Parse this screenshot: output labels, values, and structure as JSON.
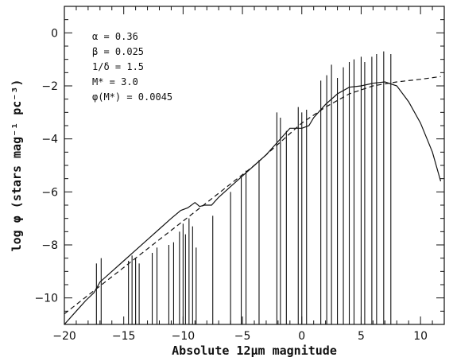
{
  "chart_data": {
    "type": "line",
    "xlabel": "Absolute 12μm magnitude",
    "ylabel": "log φ (stars mag⁻¹ pc⁻³)",
    "xlim": [
      -20,
      12
    ],
    "ylim": [
      -11,
      1
    ],
    "xticks": [
      -20,
      -15,
      -10,
      -5,
      0,
      5,
      10
    ],
    "yticks": [
      0,
      -2,
      -4,
      -6,
      -8,
      -10
    ],
    "params": [
      "α = 0.36",
      "β = 0.025",
      "1/δ = 1.5",
      "M* = 3.0",
      "φ(M*) = 0.0045"
    ],
    "series": [
      {
        "style": "solid",
        "x": [
          -20,
          -19,
          -18.2,
          -17.5,
          -17,
          -16,
          -15,
          -14,
          -13,
          -12,
          -11,
          -10.2,
          -9.6,
          -9,
          -8.6,
          -8.2,
          -7.6,
          -7,
          -6,
          -5,
          -4,
          -3,
          -2,
          -1,
          0,
          0.6,
          1,
          2,
          3,
          4,
          5,
          6,
          7,
          8,
          9,
          10,
          11,
          11.7
        ],
        "y": [
          -11,
          -10.5,
          -10.1,
          -9.8,
          -9.4,
          -9,
          -8.6,
          -8.2,
          -7.8,
          -7.4,
          -7,
          -6.7,
          -6.6,
          -6.4,
          -6.55,
          -6.5,
          -6.5,
          -6.2,
          -5.8,
          -5.4,
          -5,
          -4.6,
          -4.1,
          -3.6,
          -3.6,
          -3.5,
          -3.2,
          -2.7,
          -2.3,
          -2.05,
          -2,
          -1.9,
          -1.85,
          -2,
          -2.6,
          -3.4,
          -4.5,
          -5.6
        ]
      },
      {
        "style": "dashed",
        "x": [
          -20,
          -18,
          -16,
          -14,
          -12,
          -10,
          -8,
          -6,
          -4,
          -2,
          0,
          2,
          4,
          6,
          8,
          10,
          11.7
        ],
        "y": [
          -10.6,
          -9.9,
          -9.2,
          -8.5,
          -7.8,
          -7.1,
          -6.4,
          -5.7,
          -5.0,
          -4.2,
          -3.4,
          -2.8,
          -2.3,
          -2.0,
          -1.85,
          -1.75,
          -1.65
        ]
      }
    ],
    "error_bars": [
      {
        "x": -17.3,
        "lo": -11,
        "hi": -8.7
      },
      {
        "x": -16.9,
        "lo": -11,
        "hi": -8.5
      },
      {
        "x": -14.6,
        "lo": -11,
        "hi": -8.6
      },
      {
        "x": -14.3,
        "lo": -11,
        "hi": -8.4
      },
      {
        "x": -14.0,
        "lo": -11,
        "hi": -8.5
      },
      {
        "x": -13.7,
        "lo": -11,
        "hi": -8.7
      },
      {
        "x": -12.6,
        "lo": -11,
        "hi": -8.3
      },
      {
        "x": -12.2,
        "lo": -11,
        "hi": -8.1
      },
      {
        "x": -11.2,
        "lo": -11,
        "hi": -8.0
      },
      {
        "x": -10.8,
        "lo": -11,
        "hi": -7.9
      },
      {
        "x": -10.3,
        "lo": -11,
        "hi": -7.5
      },
      {
        "x": -10.0,
        "lo": -11,
        "hi": -7.2
      },
      {
        "x": -9.8,
        "lo": -11,
        "hi": -7.6
      },
      {
        "x": -9.5,
        "lo": -11,
        "hi": -7.0
      },
      {
        "x": -9.2,
        "lo": -11,
        "hi": -7.3
      },
      {
        "x": -8.9,
        "lo": -11,
        "hi": -8.1
      },
      {
        "x": -7.5,
        "lo": -11,
        "hi": -6.9
      },
      {
        "x": -6.0,
        "lo": -11,
        "hi": -6.0
      },
      {
        "x": -5.1,
        "lo": -11,
        "hi": -5.4
      },
      {
        "x": -4.7,
        "lo": -11,
        "hi": -5.2
      },
      {
        "x": -3.6,
        "lo": -11,
        "hi": -4.8
      },
      {
        "x": -2.1,
        "lo": -11,
        "hi": -3.0
      },
      {
        "x": -1.8,
        "lo": -11,
        "hi": -3.2
      },
      {
        "x": -1.3,
        "lo": -11,
        "hi": -3.7
      },
      {
        "x": -0.3,
        "lo": -11,
        "hi": -2.8
      },
      {
        "x": 0.0,
        "lo": -11,
        "hi": -3.0
      },
      {
        "x": 0.4,
        "lo": -11,
        "hi": -2.9
      },
      {
        "x": 1.6,
        "lo": -11,
        "hi": -1.8
      },
      {
        "x": 2.1,
        "lo": -11,
        "hi": -1.6
      },
      {
        "x": 2.5,
        "lo": -11,
        "hi": -1.2
      },
      {
        "x": 3.0,
        "lo": -11,
        "hi": -1.7
      },
      {
        "x": 3.5,
        "lo": -11,
        "hi": -1.3
      },
      {
        "x": 4.0,
        "lo": -11,
        "hi": -1.1
      },
      {
        "x": 4.4,
        "lo": -11,
        "hi": -1.0
      },
      {
        "x": 5.0,
        "lo": -11,
        "hi": -0.9
      },
      {
        "x": 5.3,
        "lo": -11,
        "hi": -1.1
      },
      {
        "x": 5.9,
        "lo": -11,
        "hi": -0.9
      },
      {
        "x": 6.3,
        "lo": -11,
        "hi": -0.8
      },
      {
        "x": 6.9,
        "lo": -11,
        "hi": -0.7
      },
      {
        "x": 7.5,
        "lo": -11,
        "hi": -0.8
      }
    ],
    "grid": false
  },
  "style": {
    "line_color": "#111111",
    "background": "#ffffff"
  }
}
